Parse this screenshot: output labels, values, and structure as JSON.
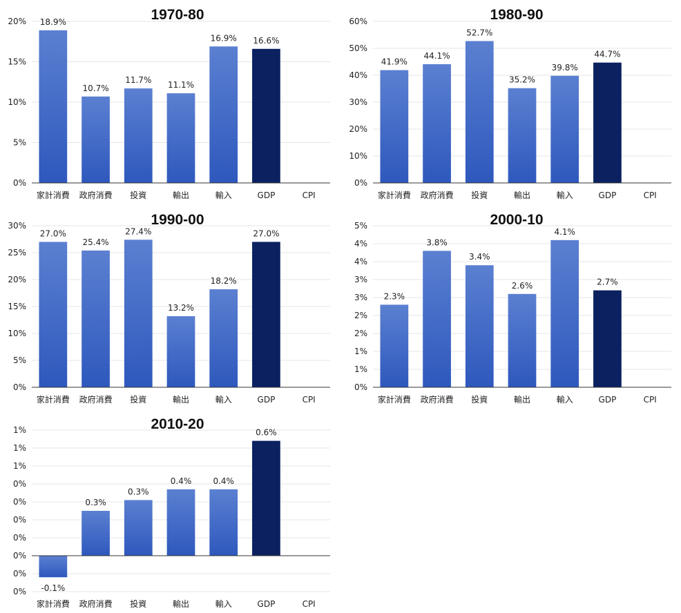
{
  "colors": {
    "bar_gradient_top": "#5b80d1",
    "bar_gradient_bottom": "#2e58bd",
    "gdp": "#0b2160",
    "grid": "#e4e4e4",
    "axis": "#333333"
  },
  "chart_data": [
    {
      "type": "bar",
      "title": "1970-80",
      "categories": [
        "家計消費",
        "政府消費",
        "投資",
        "輸出",
        "輸入",
        "GDP",
        "CPI"
      ],
      "values": [
        18.9,
        10.7,
        11.7,
        11.1,
        16.9,
        16.6,
        null
      ],
      "value_labels": [
        "18.9%",
        "10.7%",
        "11.7%",
        "11.1%",
        "16.9%",
        "16.6%",
        ""
      ],
      "ylim": [
        0,
        20
      ],
      "yticks": [
        0,
        5,
        10,
        15,
        20
      ],
      "ytick_labels": [
        "0%",
        "5%",
        "10%",
        "15%",
        "20%"
      ],
      "highlight_category": "GDP"
    },
    {
      "type": "bar",
      "title": "1980-90",
      "categories": [
        "家計消費",
        "政府消費",
        "投資",
        "輸出",
        "輸入",
        "GDP",
        "CPI"
      ],
      "values": [
        41.9,
        44.1,
        52.7,
        35.2,
        39.8,
        44.7,
        null
      ],
      "value_labels": [
        "41.9%",
        "44.1%",
        "52.7%",
        "35.2%",
        "39.8%",
        "44.7%",
        ""
      ],
      "ylim": [
        0,
        60
      ],
      "yticks": [
        0,
        10,
        20,
        30,
        40,
        50,
        60
      ],
      "ytick_labels": [
        "0%",
        "10%",
        "20%",
        "30%",
        "40%",
        "50%",
        "60%"
      ],
      "highlight_category": "GDP"
    },
    {
      "type": "bar",
      "title": "1990-00",
      "categories": [
        "家計消費",
        "政府消費",
        "投資",
        "輸出",
        "輸入",
        "GDP",
        "CPI"
      ],
      "values": [
        27.0,
        25.4,
        27.4,
        13.2,
        18.2,
        27.0,
        null
      ],
      "value_labels": [
        "27.0%",
        "25.4%",
        "27.4%",
        "13.2%",
        "18.2%",
        "27.0%",
        ""
      ],
      "ylim": [
        0,
        30
      ],
      "yticks": [
        0,
        5,
        10,
        15,
        20,
        25,
        30
      ],
      "ytick_labels": [
        "0%",
        "5%",
        "10%",
        "15%",
        "20%",
        "25%",
        "30%"
      ],
      "highlight_category": "GDP"
    },
    {
      "type": "bar",
      "title": "2000-10",
      "categories": [
        "家計消費",
        "政府消費",
        "投資",
        "輸出",
        "輸入",
        "GDP",
        "CPI"
      ],
      "values": [
        2.3,
        3.8,
        3.4,
        2.6,
        4.1,
        2.7,
        null
      ],
      "value_labels": [
        "2.3%",
        "3.8%",
        "3.4%",
        "2.6%",
        "4.1%",
        "2.7%",
        ""
      ],
      "ylim": [
        0,
        4.5
      ],
      "yticks": [
        0,
        0.5,
        1,
        1.5,
        2,
        2.5,
        3,
        3.5,
        4,
        4.5
      ],
      "ytick_labels": [
        "0%",
        "1%",
        "1%",
        "2%",
        "2%",
        "3%",
        "3%",
        "4%",
        "4%",
        "5%"
      ],
      "highlight_category": "GDP"
    },
    {
      "type": "bar",
      "title": "2010-20",
      "categories": [
        "家計消費",
        "政府消費",
        "投資",
        "輸出",
        "輸入",
        "GDP",
        "CPI"
      ],
      "values": [
        -0.12,
        0.25,
        0.31,
        0.37,
        0.37,
        0.64,
        null
      ],
      "value_labels": [
        "-0.1%",
        "0.3%",
        "0.3%",
        "0.4%",
        "0.4%",
        "0.6%",
        ""
      ],
      "ylim": [
        -0.2,
        0.7
      ],
      "yticks": [
        -0.2,
        -0.1,
        0,
        0.1,
        0.2,
        0.3,
        0.4,
        0.5,
        0.6,
        0.7
      ],
      "ytick_labels": [
        "0%",
        "0%",
        "0%",
        "0%",
        "0%",
        "0%",
        "0%",
        "1%",
        "1%",
        "1%"
      ],
      "highlight_category": "GDP"
    }
  ]
}
